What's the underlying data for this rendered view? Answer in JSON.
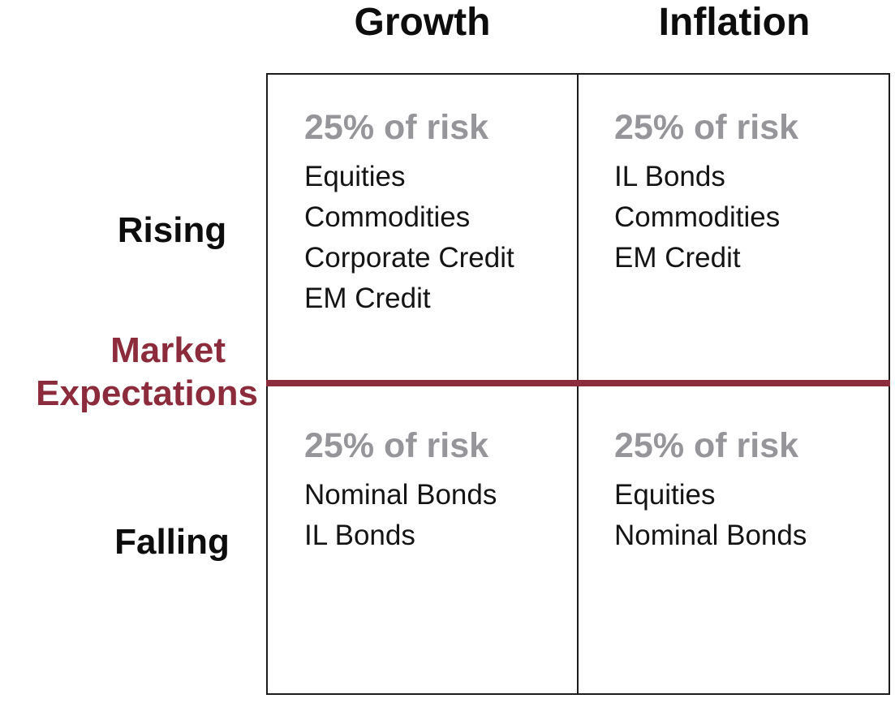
{
  "matrix": {
    "column_headers": [
      "Growth",
      "Inflation"
    ],
    "row_labels": [
      "Rising",
      "Falling"
    ],
    "axis_label": "Market Expectations",
    "axis_label_lines": [
      "Market",
      "Expectations"
    ],
    "quadrants": [
      {
        "name": "rising-growth",
        "risk_share": "25% of risk",
        "assets": [
          "Equities",
          "Commodities",
          "Corporate Credit",
          "EM Credit"
        ]
      },
      {
        "name": "rising-inflation",
        "risk_share": "25% of risk",
        "assets": [
          "IL Bonds",
          "Commodities",
          "EM Credit"
        ]
      },
      {
        "name": "falling-growth",
        "risk_share": "25% of risk",
        "assets": [
          "Nominal Bonds",
          "IL Bonds"
        ]
      },
      {
        "name": "falling-inflation",
        "risk_share": "25% of risk",
        "assets": [
          "Equities",
          "Nominal Bonds"
        ]
      }
    ],
    "colors": {
      "accent_maroon": "#8B2B3B",
      "risk_gray": "#96969A",
      "text_black": "#141414",
      "border_black": "#1C1C1C",
      "background": "#FFFFFF"
    }
  }
}
